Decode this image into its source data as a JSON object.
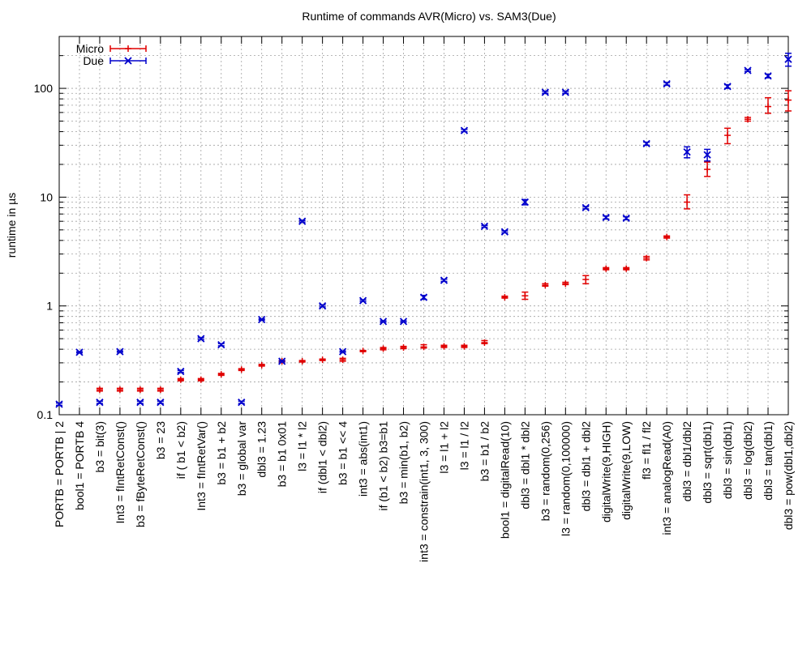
{
  "chart_data": {
    "type": "scatter",
    "title": "Runtime of commands AVR(Micro) vs. SAM3(Due)",
    "xlabel": "",
    "ylabel": "runtime in µs",
    "yscale": "log",
    "ylim": [
      0.1,
      300
    ],
    "yticks": [
      0.1,
      1,
      10,
      100
    ],
    "ytick_labels": [
      "0.1",
      "1",
      "10",
      "100"
    ],
    "grid": true,
    "legend_position": "top-left",
    "categories": [
      "PORTB = PORTB | 2",
      "bool1 = PORTB  4",
      "b3 = bit(3)",
      "Int3 = fIntRetConst()",
      "b3 = fByteRetConst()",
      "b3 = 23",
      "if ( b1 < b2)",
      "Int3 = fIntRetVar()",
      "b3 = b1 + b2",
      "b3 = global var",
      "dbl3 = 1.23",
      "b3 = b1  0x01",
      "l3 = l1 * l2",
      "if (dbl1 < dbl2)",
      "b3 = b1 << 4",
      "int3 = abs(int1)",
      "if (b1 < b2) b3=b1",
      "b3 = min(b1, b2)",
      "int3 = constrain(int1, 3, 300)",
      "l3 = l1 + l2",
      "l3 = l1 / l2",
      "b3 = b1 / b2",
      "bool1 = digitalRead(10)",
      "dbl3 = dbl1 * dbl2",
      "b3 = random(0,256)",
      "l3 = random(0,100000)",
      "dbl3 = dbl1 + dbl2",
      "digitalWrite(9,HIGH)",
      "digitalWrite(9,LOW)",
      "fl3 = fl1 / fl2",
      "int3 = analogRead(A0)",
      "dbl3 = dbl1/dbl2",
      "dbl3 = sqrt(dbl1)",
      "dbl3 = sin(dbl1)",
      "dbl3 = log(dbl2)",
      "dbl3 = tan(dbl1)",
      "dbl3 = pow(dbl1,dbl2)"
    ],
    "series": [
      {
        "name": "Micro",
        "color": "#e00000",
        "marker": "plus",
        "values": [
          null,
          null,
          0.17,
          0.17,
          0.17,
          0.17,
          0.21,
          0.21,
          0.235,
          0.26,
          0.285,
          0.31,
          0.31,
          0.32,
          0.32,
          0.385,
          0.405,
          0.415,
          0.42,
          0.425,
          0.425,
          0.46,
          1.2,
          1.24,
          1.55,
          1.6,
          1.75,
          2.2,
          2.2,
          2.75,
          4.3,
          9.0,
          18.0,
          37.0,
          52.0,
          68.0,
          78.0
        ],
        "err_low": [
          null,
          null,
          0.165,
          0.165,
          0.165,
          0.165,
          0.205,
          0.205,
          0.23,
          0.255,
          0.28,
          0.305,
          0.305,
          0.315,
          0.31,
          0.38,
          0.395,
          0.405,
          0.41,
          0.415,
          0.415,
          0.45,
          1.18,
          1.15,
          1.52,
          1.57,
          1.6,
          2.15,
          2.15,
          2.65,
          4.2,
          7.8,
          15.5,
          31.0,
          50.0,
          59.0,
          62.0
        ],
        "err_high": [
          null,
          null,
          0.175,
          0.175,
          0.175,
          0.175,
          0.215,
          0.215,
          0.24,
          0.265,
          0.29,
          0.315,
          0.315,
          0.325,
          0.33,
          0.39,
          0.415,
          0.425,
          0.44,
          0.435,
          0.435,
          0.48,
          1.23,
          1.34,
          1.6,
          1.65,
          1.9,
          2.25,
          2.25,
          2.85,
          4.4,
          10.5,
          21.0,
          43.0,
          54.0,
          82.0,
          95.0
        ]
      },
      {
        "name": "Due",
        "color": "#0000cc",
        "marker": "cross",
        "values": [
          0.125,
          0.375,
          0.13,
          0.38,
          0.13,
          0.13,
          0.25,
          0.5,
          0.44,
          0.13,
          0.75,
          0.31,
          6.0,
          1.0,
          0.38,
          1.12,
          0.72,
          0.72,
          1.2,
          1.72,
          41.0,
          5.4,
          4.8,
          9.0,
          92.0,
          92.0,
          8.0,
          6.5,
          6.4,
          31.0,
          110.0,
          26.0,
          24.5,
          104.0,
          146.0,
          130.0,
          185.0
        ],
        "err_low": [
          0.122,
          0.37,
          0.127,
          0.375,
          0.127,
          0.127,
          0.245,
          0.49,
          0.43,
          0.127,
          0.74,
          0.305,
          5.9,
          0.98,
          0.375,
          1.1,
          0.71,
          0.71,
          1.15,
          1.68,
          40.0,
          5.3,
          4.7,
          8.5,
          90.0,
          90.0,
          7.8,
          6.3,
          6.2,
          30.0,
          107.0,
          23.0,
          21.5,
          100.0,
          143.0,
          125.0,
          160.0
        ],
        "err_high": [
          0.128,
          0.38,
          0.133,
          0.385,
          0.133,
          0.133,
          0.255,
          0.51,
          0.45,
          0.133,
          0.76,
          0.315,
          6.1,
          1.02,
          0.385,
          1.14,
          0.73,
          0.73,
          1.25,
          1.76,
          42.0,
          5.5,
          4.9,
          9.5,
          94.0,
          94.0,
          8.2,
          6.7,
          6.6,
          32.0,
          113.0,
          29.0,
          27.5,
          108.0,
          149.0,
          135.0,
          210.0
        ]
      }
    ]
  }
}
